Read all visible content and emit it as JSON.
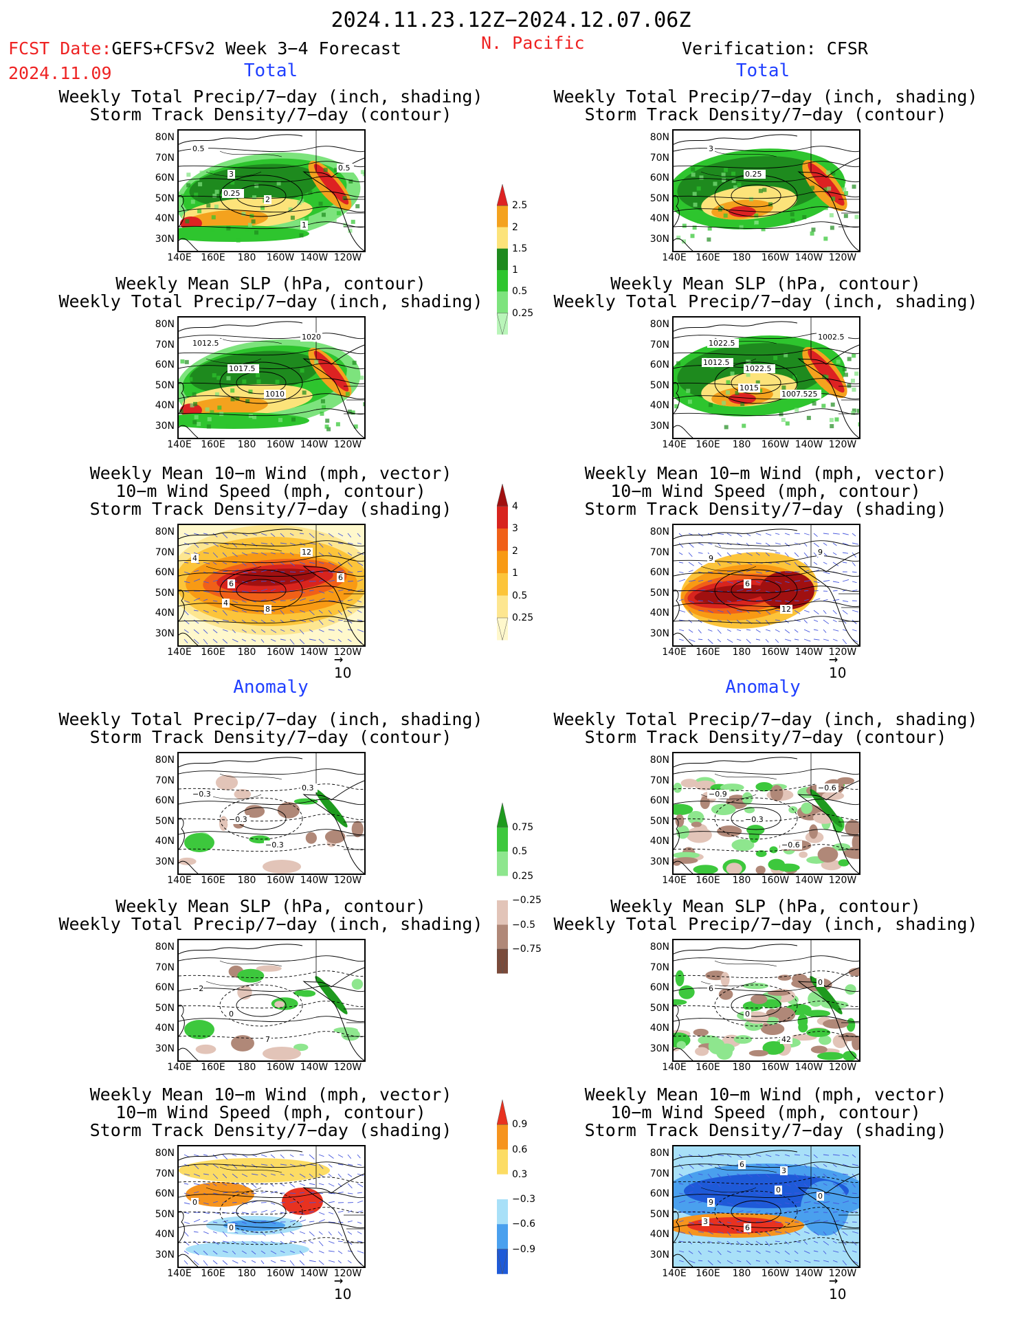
{
  "header": {
    "date_range": "2024.11.23.12Z−2024.12.07.06Z",
    "fcst_label": "FCST Date:",
    "fcst_model": "GEFS+CFSv2 Week 3−4 Forecast",
    "fcst_date": "2024.11.09",
    "region": "N. Pacific",
    "verification": "Verification: CFSR"
  },
  "sections": {
    "total": "Total",
    "anomaly": "Anomaly"
  },
  "titles": {
    "precip_track": [
      "Weekly Total Precip/7−day (inch, shading)",
      "Storm Track Density/7−day (contour)"
    ],
    "slp_precip": [
      "Weekly Mean SLP (hPa, contour)",
      "Weekly Total Precip/7−day (inch, shading)"
    ],
    "wind_track": [
      "Weekly Mean 10−m Wind (mph, vector)",
      "10−m Wind Speed (mph, contour)",
      "Storm Track Density/7−day (shading)"
    ]
  },
  "axes": {
    "lat_ticks": [
      "80N",
      "70N",
      "60N",
      "50N",
      "40N",
      "30N"
    ],
    "lon_ticks": [
      "140E",
      "160E",
      "180",
      "160W",
      "140W",
      "120W"
    ]
  },
  "vector_ref": "10",
  "colorbars": {
    "precip_total": {
      "labels": [
        "2.5",
        "2",
        "1.5",
        "1",
        "0.5",
        "0.25"
      ],
      "colors": [
        "#dd2222",
        "#f4a21e",
        "#fce37a",
        "#1e8a1e",
        "#2ec52e",
        "#7de37d",
        "#b9f5b9"
      ]
    },
    "track_total": {
      "labels": [
        "4",
        "3",
        "2",
        "1",
        "0.5",
        "0.25"
      ],
      "colors": [
        "#a01010",
        "#d8241e",
        "#f06018",
        "#f89a14",
        "#fcc43a",
        "#fde690",
        "#fff8cc"
      ]
    },
    "precip_anom": {
      "labels": [
        "0.75",
        "0.5",
        "0.25",
        "−0.25",
        "−0.5",
        "−0.75"
      ],
      "colors": [
        "#1e9a1e",
        "#3dc83d",
        "#8ee68e",
        "#ffffff",
        "#e2c4b8",
        "#b08878",
        "#7a4a3a"
      ]
    },
    "wind_anom": {
      "labels": [
        "0.9",
        "0.6",
        "0.3",
        "−0.3",
        "−0.6",
        "−0.9"
      ],
      "colors": [
        "#e83220",
        "#f6941e",
        "#fcdc64",
        "#ffffff",
        "#a8e0f8",
        "#4aa0ee",
        "#1e5ad8"
      ]
    }
  },
  "contour_labels": {
    "fc_total_precip": [
      "0.5",
      "3",
      "2",
      "1",
      "0.5",
      "0.25"
    ],
    "ob_total_precip": [
      "3",
      "0.25"
    ],
    "fc_total_slp": [
      "1012.5",
      "1017.5",
      "1010",
      "1020"
    ],
    "ob_total_slp": [
      "1022.5",
      "1022.5",
      "1007.525",
      "1002.5",
      "1012.5",
      "1015"
    ],
    "fc_total_wind": [
      "4",
      "6",
      "8",
      "12",
      "6",
      "4"
    ],
    "ob_total_wind": [
      "9",
      "6",
      "12",
      "9"
    ],
    "fc_anom_precip": [
      "−0.3",
      "−0.3",
      "−0.3",
      "0.3"
    ],
    "ob_anom_precip": [
      "−0.9",
      "−0.3",
      "−0.6",
      "−0.6"
    ],
    "fc_anom_slp": [
      "−2",
      "0",
      "7"
    ],
    "ob_anom_slp": [
      "6",
      "0",
      "42",
      "0"
    ],
    "fc_anom_wind": [
      "0",
      "0"
    ],
    "ob_anom_wind": [
      "9",
      "6",
      "3",
      "0",
      "3",
      "6",
      "0"
    ]
  }
}
